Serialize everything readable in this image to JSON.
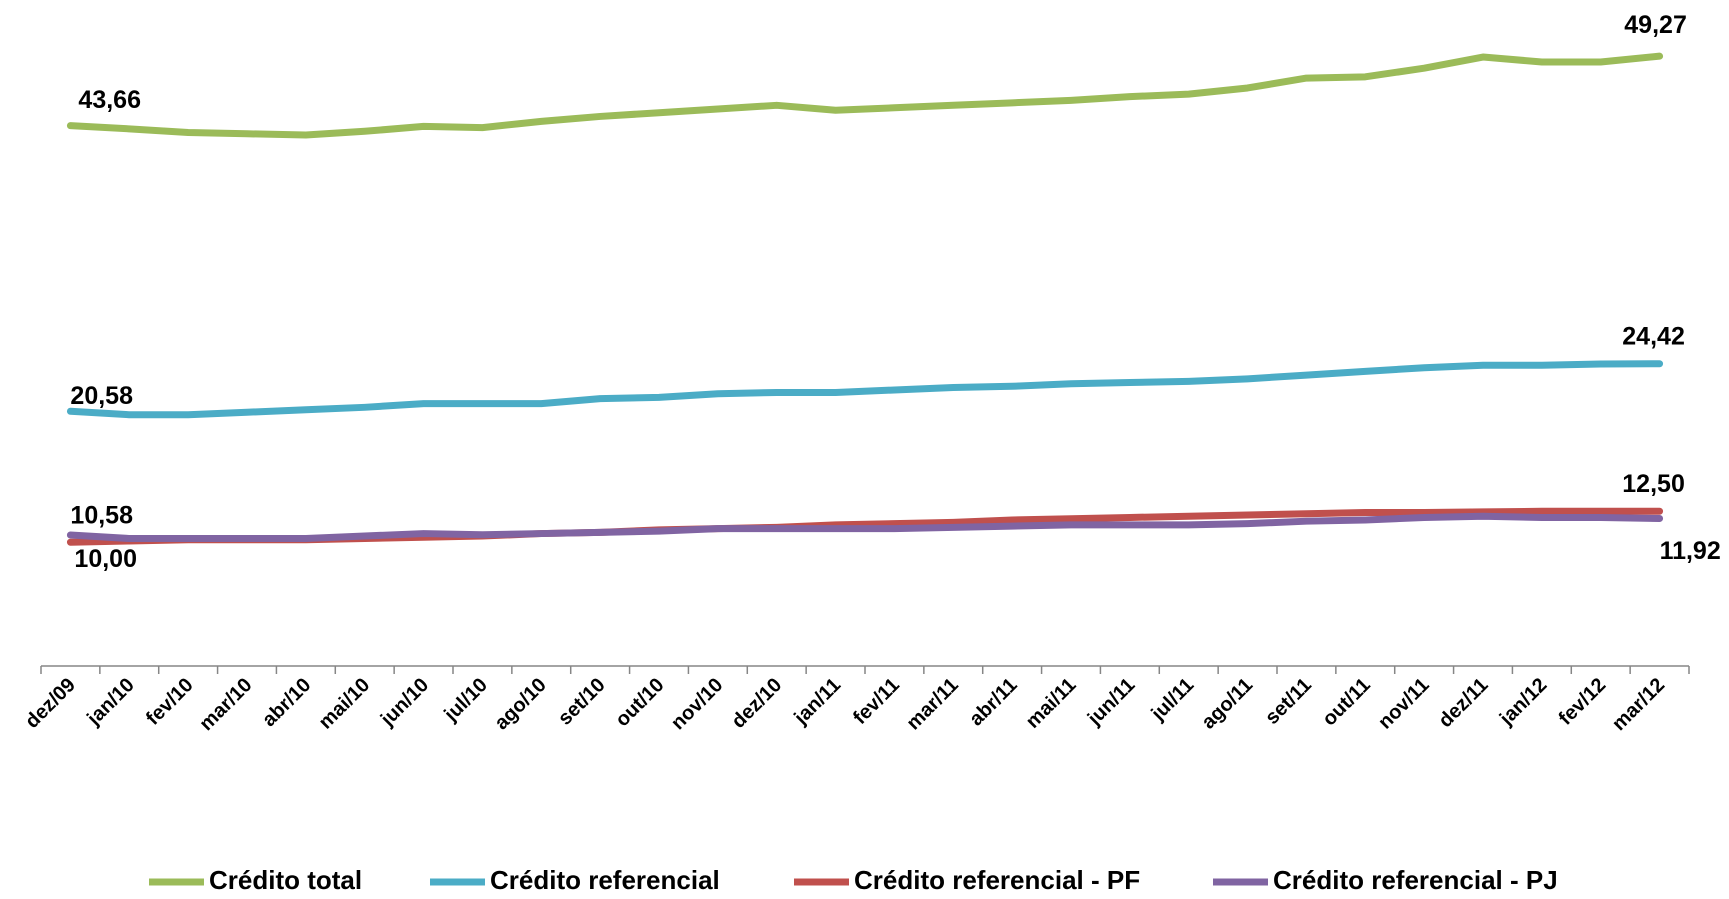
{
  "chart_data": {
    "type": "line",
    "categories": [
      "dez/09",
      "jan/10",
      "fev/10",
      "mar/10",
      "abr/10",
      "mai/10",
      "jun/10",
      "jul/10",
      "ago/10",
      "set/10",
      "out/10",
      "nov/10",
      "dez/10",
      "jan/11",
      "fev/11",
      "mar/11",
      "abr/11",
      "mai/11",
      "jun/11",
      "jul/11",
      "ago/11",
      "set/11",
      "out/11",
      "nov/11",
      "dez/11",
      "jan/12",
      "fev/12",
      "mar/12"
    ],
    "ylim": [
      0,
      53
    ],
    "series": [
      {
        "name": "Crédito total",
        "color": "#9bbb59",
        "values": [
          43.66,
          43.4,
          43.1,
          43.0,
          42.9,
          43.2,
          43.6,
          43.5,
          44.0,
          44.4,
          44.7,
          45.0,
          45.3,
          44.9,
          45.1,
          45.3,
          45.5,
          45.7,
          46.0,
          46.2,
          46.7,
          47.5,
          47.6,
          48.3,
          49.2,
          48.8,
          48.8,
          49.27
        ],
        "value_labels": [
          "43,66",
          null,
          null,
          null,
          null,
          null,
          null,
          null,
          null,
          null,
          null,
          null,
          null,
          null,
          null,
          null,
          null,
          null,
          null,
          null,
          null,
          null,
          null,
          null,
          null,
          null,
          null,
          "49,27"
        ]
      },
      {
        "name": "Crédito referencial",
        "color": "#4bacc6",
        "values": [
          20.58,
          20.3,
          20.3,
          20.5,
          20.7,
          20.9,
          21.2,
          21.2,
          21.2,
          21.6,
          21.7,
          22.0,
          22.1,
          22.1,
          22.3,
          22.5,
          22.6,
          22.8,
          22.9,
          23.0,
          23.2,
          23.5,
          23.8,
          24.1,
          24.3,
          24.3,
          24.4,
          24.42
        ],
        "value_labels": [
          "20,58",
          null,
          null,
          null,
          null,
          null,
          null,
          null,
          null,
          null,
          null,
          null,
          null,
          null,
          null,
          null,
          null,
          null,
          null,
          null,
          null,
          null,
          null,
          null,
          null,
          null,
          null,
          "24,42"
        ]
      },
      {
        "name": "Crédito referencial - PF",
        "color": "#c0504d",
        "values": [
          10.0,
          10.1,
          10.2,
          10.2,
          10.2,
          10.3,
          10.4,
          10.5,
          10.7,
          10.8,
          11.0,
          11.1,
          11.2,
          11.4,
          11.5,
          11.6,
          11.8,
          11.9,
          12.0,
          12.1,
          12.2,
          12.3,
          12.4,
          12.4,
          12.45,
          12.5,
          12.5,
          12.5
        ],
        "value_labels": [
          "10,00",
          null,
          null,
          null,
          null,
          null,
          null,
          null,
          null,
          null,
          null,
          null,
          null,
          null,
          null,
          null,
          null,
          null,
          null,
          null,
          null,
          null,
          null,
          null,
          null,
          null,
          null,
          "12,50"
        ]
      },
      {
        "name": "Crédito referencial - PJ",
        "color": "#8064a2",
        "values": [
          10.58,
          10.3,
          10.3,
          10.3,
          10.3,
          10.5,
          10.7,
          10.6,
          10.7,
          10.8,
          10.9,
          11.1,
          11.1,
          11.1,
          11.1,
          11.2,
          11.3,
          11.4,
          11.4,
          11.4,
          11.5,
          11.7,
          11.8,
          12.0,
          12.1,
          12.0,
          12.0,
          11.92
        ],
        "value_labels": [
          "10,58",
          null,
          null,
          null,
          null,
          null,
          null,
          null,
          null,
          null,
          null,
          null,
          null,
          null,
          null,
          null,
          null,
          null,
          null,
          null,
          null,
          null,
          null,
          null,
          null,
          null,
          null,
          "11,92"
        ]
      }
    ]
  }
}
